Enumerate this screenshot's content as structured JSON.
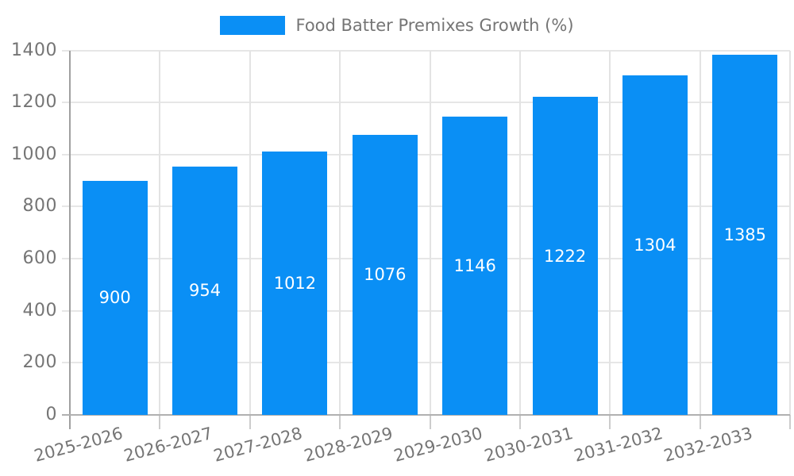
{
  "chart_data": {
    "type": "bar",
    "title": "",
    "legend": "Food Batter Premixes Growth (%)",
    "legend_position": "top-center",
    "categories": [
      "2025-2026",
      "2026-2027",
      "2027-2028",
      "2028-2029",
      "2029-2030",
      "2030-2031",
      "2031-2032",
      "2032-2033"
    ],
    "values": [
      900,
      954,
      1012,
      1076,
      1146,
      1222,
      1304,
      1385
    ],
    "xlabel": "",
    "ylabel": "",
    "ylim": [
      0,
      1400
    ],
    "yticks": [
      0,
      200,
      400,
      600,
      800,
      1000,
      1200,
      1400
    ],
    "grid": true,
    "bar_color": "#0a8ff5",
    "bar_value_label_color": "#ffffff",
    "axis_text_color": "#757575",
    "gridline_color": "#e6e6e6",
    "vertical_gridline_color": "#e3e3e3",
    "axis_line_color": "#b0b0b0",
    "y_axis_line_color": "#a0a0a0",
    "x_tick_mark_color": "#cccccc",
    "background_color": "#ffffff"
  }
}
